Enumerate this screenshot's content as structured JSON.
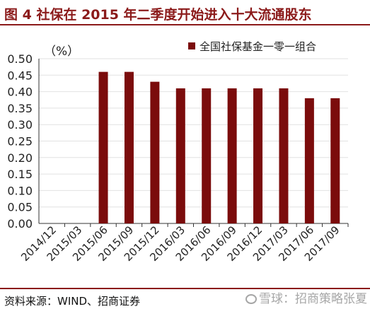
{
  "figure": {
    "title": "图 4  社保在 2015 年二季度开始进入十大流通股东",
    "source": "资料来源：WIND、招商证券",
    "watermark": "雪球：招商策略张夏"
  },
  "colors": {
    "accent": "#8b1a1a",
    "bar": "#7b0c0c",
    "grid": "#e2e2e2"
  },
  "chart_data": {
    "type": "bar",
    "unit_label": "（%）",
    "categories": [
      "2014/12",
      "2015/03",
      "2015/06",
      "2015/09",
      "2015/12",
      "2016/03",
      "2016/06",
      "2016/09",
      "2016/12",
      "2017/03",
      "2017/06",
      "2017/09"
    ],
    "series": [
      {
        "name": "全国社保基金一零一组合",
        "values": [
          null,
          null,
          0.46,
          0.46,
          0.43,
          0.41,
          0.41,
          0.41,
          0.41,
          0.41,
          0.38,
          0.38
        ]
      }
    ],
    "ylim": [
      0,
      0.5
    ],
    "yticks": [
      "0.00",
      "0.05",
      "0.10",
      "0.15",
      "0.20",
      "0.25",
      "0.30",
      "0.35",
      "0.40",
      "0.45",
      "0.50"
    ],
    "grid": true,
    "legend_position": "top-right"
  }
}
